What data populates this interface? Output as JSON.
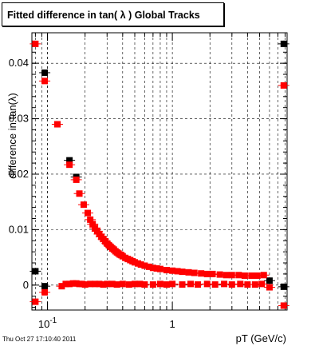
{
  "title": "Fitted difference in tan( λ )  Global Tracks",
  "timestamp": "Thu Oct 27 17:10:40 2011",
  "chart_data": {
    "type": "scatter",
    "title": "Fitted difference in tan( λ )  Global Tracks",
    "xlabel": "pT (GeV/c)",
    "ylabel": "difference in tan(λ)",
    "xscale": "log",
    "xlim": [
      0.075,
      8.3
    ],
    "ylim": [
      -0.0045,
      0.0455
    ],
    "grid": true,
    "x_tick_labels": [
      {
        "value": 0.1,
        "base": "10",
        "exp": "-1"
      },
      {
        "value": 1,
        "label": "1"
      }
    ],
    "y_ticks": [
      {
        "value": 0,
        "label": "0"
      },
      {
        "value": 0.01,
        "label": "0.01"
      },
      {
        "value": 0.02,
        "label": "0.02"
      },
      {
        "value": 0.03,
        "label": "0.03"
      },
      {
        "value": 0.04,
        "label": "0.04"
      }
    ],
    "series": [
      {
        "color": "#000000",
        "points": [
          [
            0.08,
            0.0025
          ],
          [
            0.095,
            -0.0002
          ],
          [
            0.12,
            0.029
          ],
          [
            0.15,
            0.0225
          ],
          [
            0.17,
            0.0195
          ],
          [
            6.0,
            0.0008
          ],
          [
            7.8,
            -0.0003
          ]
        ],
        "upper_points": [
          [
            0.095,
            0.0383
          ],
          [
            7.8,
            0.0435
          ]
        ]
      },
      {
        "color": "#ff0000",
        "points": [
          [
            0.08,
            -0.003
          ],
          [
            0.095,
            -0.0013
          ],
          [
            0.12,
            0.029
          ],
          [
            0.15,
            0.0217
          ],
          [
            0.17,
            0.019
          ],
          [
            0.18,
            0.0165
          ],
          [
            0.195,
            0.0145
          ],
          [
            0.21,
            0.013
          ],
          [
            0.22,
            0.0118
          ],
          [
            0.23,
            0.011
          ],
          [
            0.24,
            0.0103
          ],
          [
            0.25,
            0.0097
          ],
          [
            0.26,
            0.0092
          ],
          [
            0.27,
            0.0087
          ],
          [
            0.28,
            0.0083
          ],
          [
            0.29,
            0.0079
          ],
          [
            0.3,
            0.0075
          ],
          [
            0.31,
            0.0072
          ],
          [
            0.32,
            0.0069
          ],
          [
            0.33,
            0.0066
          ],
          [
            0.34,
            0.0064
          ],
          [
            0.35,
            0.0061
          ],
          [
            0.36,
            0.0059
          ],
          [
            0.37,
            0.0057
          ],
          [
            0.38,
            0.0055
          ],
          [
            0.39,
            0.0054
          ],
          [
            0.4,
            0.0052
          ],
          [
            0.42,
            0.0049
          ],
          [
            0.44,
            0.0047
          ],
          [
            0.46,
            0.0045
          ],
          [
            0.48,
            0.0043
          ],
          [
            0.5,
            0.0041
          ],
          [
            0.53,
            0.0039
          ],
          [
            0.56,
            0.0037
          ],
          [
            0.6,
            0.0035
          ],
          [
            0.65,
            0.0033
          ],
          [
            0.7,
            0.0031
          ],
          [
            0.75,
            0.003
          ],
          [
            0.8,
            0.0029
          ],
          [
            0.9,
            0.0027
          ],
          [
            1.0,
            0.0026
          ],
          [
            1.1,
            0.0025
          ],
          [
            1.2,
            0.0024
          ],
          [
            1.35,
            0.0023
          ],
          [
            1.5,
            0.0022
          ],
          [
            1.7,
            0.0021
          ],
          [
            1.9,
            0.002
          ],
          [
            2.1,
            0.002
          ],
          [
            2.4,
            0.0019
          ],
          [
            2.7,
            0.0018
          ],
          [
            3.0,
            0.0018
          ],
          [
            3.4,
            0.0018
          ],
          [
            3.8,
            0.0017
          ],
          [
            4.3,
            0.0017
          ],
          [
            4.8,
            0.0017
          ],
          [
            5.4,
            0.0018
          ],
          [
            6.0,
            -0.0004
          ],
          [
            7.8,
            -0.0037
          ],
          [
            0.13,
            -0.0002
          ],
          [
            0.14,
            0.0002
          ],
          [
            0.15,
            0.0002
          ],
          [
            0.16,
            0.0003
          ],
          [
            0.17,
            0.0003
          ],
          [
            0.18,
            0.0002
          ],
          [
            0.19,
            0.0002
          ],
          [
            0.2,
            0.0001
          ],
          [
            0.22,
            0.0002
          ],
          [
            0.24,
            0.0002
          ],
          [
            0.26,
            0.0002
          ],
          [
            0.28,
            0.0001
          ],
          [
            0.3,
            0.0002
          ],
          [
            0.33,
            0.0002
          ],
          [
            0.36,
            0.0001
          ],
          [
            0.4,
            0.0002
          ],
          [
            0.45,
            0.0001
          ],
          [
            0.5,
            0.0002
          ],
          [
            0.55,
            0.0002
          ],
          [
            0.6,
            0.0001
          ],
          [
            0.7,
            0.0001
          ],
          [
            0.8,
            0.0002
          ],
          [
            0.9,
            0.0001
          ],
          [
            1.0,
            0.0002
          ],
          [
            1.2,
            0.0001
          ],
          [
            1.4,
            0.0002
          ],
          [
            1.6,
            0.0001
          ],
          [
            1.9,
            0.0002
          ],
          [
            2.2,
            0.0001
          ],
          [
            2.6,
            0.0002
          ],
          [
            3.0,
            0.0001
          ],
          [
            3.5,
            0.0002
          ],
          [
            4.0,
            0.0001
          ],
          [
            4.6,
            0.0001
          ],
          [
            5.2,
            0.0002
          ]
        ],
        "upper_points": [
          [
            0.08,
            0.0435
          ],
          [
            0.095,
            0.0368
          ],
          [
            7.8,
            0.036
          ]
        ]
      }
    ]
  }
}
